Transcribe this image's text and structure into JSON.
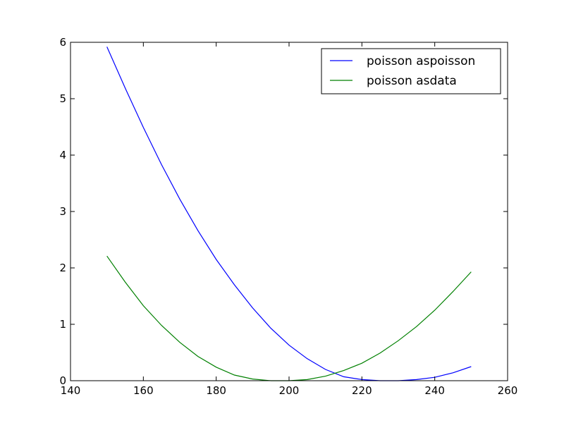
{
  "chart_data": {
    "type": "line",
    "title": "",
    "xlabel": "",
    "ylabel": "",
    "xlim": [
      140,
      260
    ],
    "ylim": [
      0,
      6
    ],
    "xticks": [
      "140",
      "160",
      "180",
      "200",
      "220",
      "240",
      "260"
    ],
    "yticks": [
      "0",
      "1",
      "2",
      "3",
      "4",
      "5",
      "6"
    ],
    "grid": false,
    "legend_position": "top-right",
    "series": [
      {
        "name": "poisson aspoisson",
        "color": "#0000ff",
        "x": [
          150,
          155,
          160,
          165,
          170,
          175,
          180,
          185,
          190,
          195,
          200,
          205,
          210,
          215,
          220,
          225,
          230,
          235,
          240,
          245,
          250
        ],
        "y": [
          5.92,
          5.19,
          4.49,
          3.83,
          3.22,
          2.66,
          2.15,
          1.7,
          1.29,
          0.93,
          0.63,
          0.39,
          0.2,
          0.07,
          0.02,
          0.0,
          0.0,
          0.02,
          0.06,
          0.14,
          0.25
        ]
      },
      {
        "name": "poisson asdata",
        "color": "#008000",
        "x": [
          150,
          155,
          160,
          165,
          170,
          175,
          180,
          185,
          190,
          195,
          200,
          205,
          210,
          215,
          220,
          225,
          230,
          235,
          240,
          245,
          250
        ],
        "y": [
          2.21,
          1.75,
          1.33,
          0.98,
          0.68,
          0.43,
          0.24,
          0.1,
          0.03,
          0.0,
          0.0,
          0.02,
          0.08,
          0.18,
          0.31,
          0.49,
          0.71,
          0.96,
          1.25,
          1.58,
          1.93
        ]
      }
    ]
  }
}
